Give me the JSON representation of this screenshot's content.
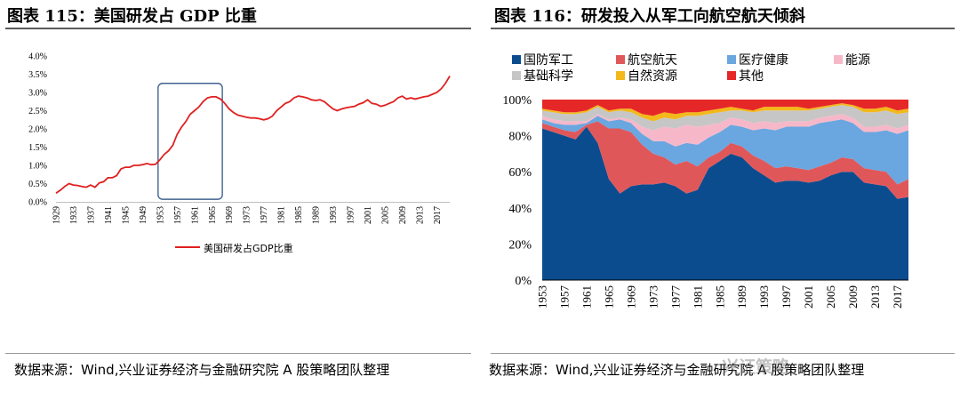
{
  "left_panel": {
    "title": "图表 115：美国研发占 GDP 比重",
    "source": "数据来源：Wind,兴业证券经济与金融研究院 A 股策略团队整理"
  },
  "right_panel": {
    "title": "图表 116：研发投入从军工向航空航天倾斜",
    "source": "数据来源：Wind,兴业证券经济与金融研究院 A 股策略团队整理",
    "watermark": "兴证策略",
    "series_colors": {
      "国防军工": "#0b4c8f",
      "航空航天": "#e0575a",
      "医疗健康": "#6aa6e0",
      "能源": "#f6b8c9",
      "基础科学": "#c6c6c6",
      "自然资源": "#f3b81a",
      "其他": "#e62727"
    }
  },
  "chart_data": [
    {
      "type": "line",
      "title": "美国研发占GDP比重",
      "legend": [
        "美国研发占GDP比重"
      ],
      "legend_position": "bottom",
      "line_color": "#e02020",
      "highlight_box_color": "#41638f",
      "highlight_range": [
        1953,
        1966
      ],
      "ylim": [
        0,
        4.0
      ],
      "y_ticks": [
        "0.0%",
        "0.5%",
        "1.0%",
        "1.5%",
        "2.0%",
        "2.5%",
        "3.0%",
        "3.5%",
        "4.0%"
      ],
      "x_ticks": [
        "1929",
        "1933",
        "1937",
        "1941",
        "1945",
        "1949",
        "1953",
        "1957",
        "1961",
        "1965",
        "1969",
        "1973",
        "1977",
        "1981",
        "1985",
        "1989",
        "1993",
        "1997",
        "2001",
        "2005",
        "2009",
        "2013",
        "2017"
      ],
      "series": [
        {
          "name": "美国研发占GDP比重",
          "points": [
            [
              1929,
              0.24
            ],
            [
              1930,
              0.32
            ],
            [
              1931,
              0.42
            ],
            [
              1932,
              0.5
            ],
            [
              1933,
              0.46
            ],
            [
              1934,
              0.45
            ],
            [
              1935,
              0.42
            ],
            [
              1936,
              0.4
            ],
            [
              1937,
              0.46
            ],
            [
              1938,
              0.4
            ],
            [
              1939,
              0.52
            ],
            [
              1940,
              0.55
            ],
            [
              1941,
              0.66
            ],
            [
              1942,
              0.66
            ],
            [
              1943,
              0.72
            ],
            [
              1944,
              0.9
            ],
            [
              1945,
              0.95
            ],
            [
              1946,
              0.95
            ],
            [
              1947,
              1.0
            ],
            [
              1948,
              1.0
            ],
            [
              1949,
              1.02
            ],
            [
              1950,
              1.05
            ],
            [
              1951,
              1.02
            ],
            [
              1952,
              1.03
            ],
            [
              1953,
              1.15
            ],
            [
              1954,
              1.3
            ],
            [
              1955,
              1.4
            ],
            [
              1956,
              1.55
            ],
            [
              1957,
              1.85
            ],
            [
              1958,
              2.05
            ],
            [
              1959,
              2.2
            ],
            [
              1960,
              2.4
            ],
            [
              1961,
              2.5
            ],
            [
              1962,
              2.6
            ],
            [
              1963,
              2.75
            ],
            [
              1964,
              2.85
            ],
            [
              1965,
              2.88
            ],
            [
              1966,
              2.88
            ],
            [
              1967,
              2.82
            ],
            [
              1968,
              2.7
            ],
            [
              1969,
              2.55
            ],
            [
              1970,
              2.45
            ],
            [
              1971,
              2.38
            ],
            [
              1972,
              2.35
            ],
            [
              1973,
              2.32
            ],
            [
              1974,
              2.3
            ],
            [
              1975,
              2.3
            ],
            [
              1976,
              2.28
            ],
            [
              1977,
              2.25
            ],
            [
              1978,
              2.28
            ],
            [
              1979,
              2.35
            ],
            [
              1980,
              2.5
            ],
            [
              1981,
              2.6
            ],
            [
              1982,
              2.7
            ],
            [
              1983,
              2.75
            ],
            [
              1984,
              2.85
            ],
            [
              1985,
              2.9
            ],
            [
              1986,
              2.88
            ],
            [
              1987,
              2.85
            ],
            [
              1988,
              2.8
            ],
            [
              1989,
              2.78
            ],
            [
              1990,
              2.8
            ],
            [
              1991,
              2.75
            ],
            [
              1992,
              2.65
            ],
            [
              1993,
              2.55
            ],
            [
              1994,
              2.5
            ],
            [
              1995,
              2.55
            ],
            [
              1996,
              2.58
            ],
            [
              1997,
              2.6
            ],
            [
              1998,
              2.62
            ],
            [
              1999,
              2.68
            ],
            [
              2000,
              2.72
            ],
            [
              2001,
              2.8
            ],
            [
              2002,
              2.7
            ],
            [
              2003,
              2.68
            ],
            [
              2004,
              2.62
            ],
            [
              2005,
              2.65
            ],
            [
              2006,
              2.7
            ],
            [
              2007,
              2.75
            ],
            [
              2008,
              2.85
            ],
            [
              2009,
              2.9
            ],
            [
              2010,
              2.82
            ],
            [
              2011,
              2.85
            ],
            [
              2012,
              2.82
            ],
            [
              2013,
              2.85
            ],
            [
              2014,
              2.88
            ],
            [
              2015,
              2.9
            ],
            [
              2016,
              2.95
            ],
            [
              2017,
              3.0
            ],
            [
              2018,
              3.1
            ],
            [
              2019,
              3.25
            ],
            [
              2020,
              3.45
            ]
          ]
        }
      ]
    },
    {
      "type": "area",
      "stacked": true,
      "title": "研发投入从军工向航空航天倾斜",
      "ylim": [
        0,
        100
      ],
      "y_ticks": [
        "0%",
        "20%",
        "40%",
        "60%",
        "80%",
        "100%"
      ],
      "x_ticks": [
        "1953",
        "1957",
        "1961",
        "1965",
        "1969",
        "1973",
        "1977",
        "1981",
        "1985",
        "1989",
        "1993",
        "1997",
        "2001",
        "2005",
        "2009",
        "2013",
        "2017"
      ],
      "legend_position": "top",
      "x": [
        1953,
        1955,
        1957,
        1959,
        1961,
        1963,
        1965,
        1967,
        1969,
        1971,
        1973,
        1975,
        1977,
        1979,
        1981,
        1983,
        1985,
        1987,
        1989,
        1991,
        1993,
        1995,
        1997,
        1999,
        2001,
        2003,
        2005,
        2007,
        2009,
        2011,
        2013,
        2015,
        2017,
        2019
      ],
      "series": [
        {
          "name": "国防军工",
          "values": [
            84,
            82,
            80,
            78,
            85,
            76,
            56,
            48,
            52,
            53,
            53,
            54,
            52,
            48,
            50,
            62,
            66,
            70,
            68,
            62,
            58,
            54,
            55,
            55,
            54,
            55,
            58,
            60,
            60,
            54,
            53,
            52,
            45,
            46
          ]
        },
        {
          "name": "航空航天",
          "values": [
            3,
            3,
            3,
            4,
            1,
            12,
            28,
            36,
            30,
            22,
            17,
            14,
            12,
            18,
            13,
            6,
            5,
            6,
            6,
            7,
            8,
            8,
            8,
            7,
            7,
            8,
            7,
            8,
            7,
            8,
            8,
            8,
            8,
            10
          ]
        },
        {
          "name": "医疗健康",
          "values": [
            2,
            2,
            3,
            4,
            1,
            3,
            4,
            5,
            5,
            6,
            7,
            9,
            10,
            10,
            12,
            11,
            11,
            10,
            11,
            14,
            18,
            21,
            22,
            23,
            24,
            24,
            23,
            21,
            20,
            20,
            21,
            23,
            28,
            27
          ]
        },
        {
          "name": "能源",
          "values": [
            2,
            2,
            2,
            2,
            1,
            1,
            1,
            1,
            2,
            4,
            6,
            8,
            10,
            10,
            10,
            7,
            5,
            4,
            4,
            4,
            4,
            4,
            3,
            3,
            3,
            3,
            3,
            3,
            3,
            3,
            3,
            3,
            3,
            3
          ]
        },
        {
          "name": "基础科学",
          "values": [
            3,
            4,
            4,
            4,
            5,
            4,
            4,
            4,
            4,
            5,
            5,
            5,
            5,
            5,
            6,
            6,
            6,
            4,
            5,
            6,
            6,
            7,
            6,
            6,
            6,
            5,
            5,
            5,
            6,
            8,
            8,
            8,
            8,
            7
          ]
        },
        {
          "name": "自然资源",
          "values": [
            1,
            1,
            1,
            1,
            1,
            1,
            1,
            1,
            2,
            2,
            3,
            3,
            3,
            2,
            2,
            2,
            2,
            2,
            1,
            1,
            2,
            2,
            2,
            2,
            1,
            1,
            1,
            1,
            1,
            2,
            2,
            2,
            2,
            2
          ]
        },
        {
          "name": "其他",
          "values": [
            5,
            6,
            7,
            7,
            6,
            3,
            6,
            5,
            5,
            8,
            9,
            7,
            8,
            7,
            7,
            6,
            5,
            4,
            5,
            6,
            4,
            4,
            4,
            4,
            5,
            4,
            3,
            2,
            3,
            5,
            5,
            4,
            6,
            5
          ]
        }
      ]
    }
  ]
}
